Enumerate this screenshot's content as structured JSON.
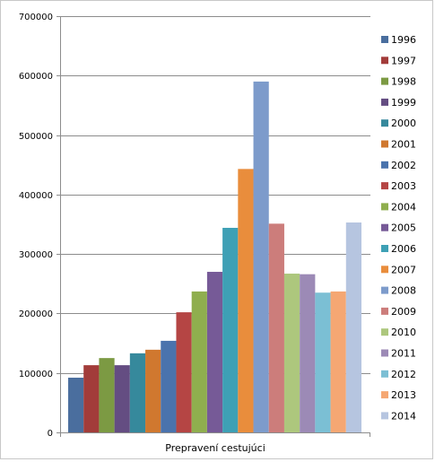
{
  "chart_data": {
    "type": "bar",
    "title": "",
    "xlabel": "Prepravení cestujúci",
    "ylabel": "",
    "ylim": [
      0,
      700000
    ],
    "y_ticks": [
      "0",
      "100000",
      "200000",
      "300000",
      "400000",
      "500000",
      "600000",
      "700000"
    ],
    "grid": true,
    "legend_position": "right",
    "categories": [
      "Prepravení cestujúci"
    ],
    "series": [
      {
        "name": "1996",
        "values": [
          92000
        ],
        "color": "#4a6e9e"
      },
      {
        "name": "1997",
        "values": [
          113000
        ],
        "color": "#a23c3a"
      },
      {
        "name": "1998",
        "values": [
          125000
        ],
        "color": "#7c9a43"
      },
      {
        "name": "1999",
        "values": [
          113000
        ],
        "color": "#644d82"
      },
      {
        "name": "2000",
        "values": [
          133000
        ],
        "color": "#36899c"
      },
      {
        "name": "2001",
        "values": [
          139000
        ],
        "color": "#d0782f"
      },
      {
        "name": "2002",
        "values": [
          154000
        ],
        "color": "#4a73ad"
      },
      {
        "name": "2003",
        "values": [
          202000
        ],
        "color": "#b54544"
      },
      {
        "name": "2004",
        "values": [
          237000
        ],
        "color": "#8fae4e"
      },
      {
        "name": "2005",
        "values": [
          270000
        ],
        "color": "#765a97"
      },
      {
        "name": "2006",
        "values": [
          344000
        ],
        "color": "#3ea0b5"
      },
      {
        "name": "2007",
        "values": [
          443000
        ],
        "color": "#e98d3c"
      },
      {
        "name": "2008",
        "values": [
          590000
        ],
        "color": "#7d9bcb"
      },
      {
        "name": "2009",
        "values": [
          351000
        ],
        "color": "#cc7d7b"
      },
      {
        "name": "2010",
        "values": [
          267000
        ],
        "color": "#adc77d"
      },
      {
        "name": "2011",
        "values": [
          266000
        ],
        "color": "#9c8ab6"
      },
      {
        "name": "2012",
        "values": [
          235000
        ],
        "color": "#7bbfd4"
      },
      {
        "name": "2013",
        "values": [
          237000
        ],
        "color": "#f5a773"
      },
      {
        "name": "2014",
        "values": [
          353000
        ],
        "color": "#b6c5e0"
      }
    ]
  }
}
